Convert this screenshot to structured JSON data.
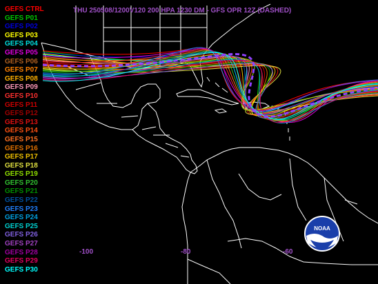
{
  "title": "THU 250508/1200V120  200 HPA 1230 DM - GFS OPR 12Z (DASHED)",
  "title_color": "#a050c8",
  "legend": [
    {
      "label": "GEFS CTRL",
      "color": "#ff0000"
    },
    {
      "label": "GEFS P01",
      "color": "#00c800"
    },
    {
      "label": "GEFS P02",
      "color": "#0000dc"
    },
    {
      "label": "GEFS P03",
      "color": "#ffff00"
    },
    {
      "label": "GEFS P04",
      "color": "#00e0e0"
    },
    {
      "label": "GEFS P05",
      "color": "#e000e0"
    },
    {
      "label": "GEFS P06",
      "color": "#b06020"
    },
    {
      "label": "GEFS P07",
      "color": "#ff8000"
    },
    {
      "label": "GEFS P08",
      "color": "#ffb000"
    },
    {
      "label": "GEFS P09",
      "color": "#ff99bb"
    },
    {
      "label": "GEFS P10",
      "color": "#ff3030"
    },
    {
      "label": "GEFS P11",
      "color": "#cc0000"
    },
    {
      "label": "GEFS P12",
      "color": "#a00000"
    },
    {
      "label": "GEFS P13",
      "color": "#e01010"
    },
    {
      "label": "GEFS P14",
      "color": "#ff5010"
    },
    {
      "label": "GEFS P15",
      "color": "#ff7020"
    },
    {
      "label": "GEFS P16",
      "color": "#e07000"
    },
    {
      "label": "GEFS P17",
      "color": "#f0c000"
    },
    {
      "label": "GEFS P18",
      "color": "#e0e040"
    },
    {
      "label": "GEFS P19",
      "color": "#90e000"
    },
    {
      "label": "GEFS P20",
      "color": "#30c030"
    },
    {
      "label": "GEFS P21",
      "color": "#009000"
    },
    {
      "label": "GEFS P22",
      "color": "#0050a0"
    },
    {
      "label": "GEFS P23",
      "color": "#2080ff"
    },
    {
      "label": "GEFS P24",
      "color": "#00a0e0"
    },
    {
      "label": "GEFS P25",
      "color": "#00d0d0"
    },
    {
      "label": "GEFS P26",
      "color": "#8060e0"
    },
    {
      "label": "GEFS P27",
      "color": "#a040c0"
    },
    {
      "label": "GEFS P28",
      "color": "#a000a0"
    },
    {
      "label": "GEFS P29",
      "color": "#e00060"
    },
    {
      "label": "GEFS P30",
      "color": "#00ffff"
    }
  ],
  "axis_labels": [
    "-100",
    "-80",
    "-60"
  ],
  "axis_color": "#a050c8",
  "coastline_color": "#ffffff",
  "operational_color": "#9040ff",
  "logo": {
    "text": "NOAA"
  }
}
